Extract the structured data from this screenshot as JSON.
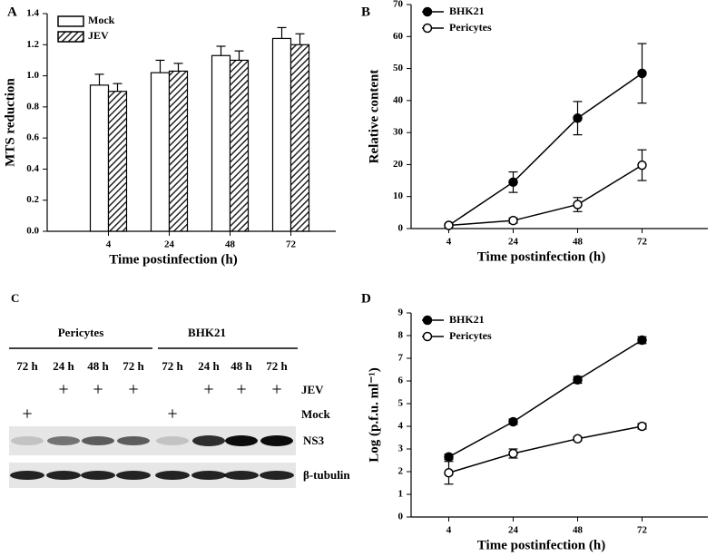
{
  "chart_data": [
    {
      "type": "bar",
      "panel": "A",
      "ylabel": "MTS reduction",
      "xlabel": "Time postinfection (h)",
      "categories": [
        "4",
        "24",
        "48",
        "72"
      ],
      "ylim": [
        0,
        1.4
      ],
      "yticks": [
        {
          "value": 0,
          "label": "0.0"
        },
        0.2,
        0.4,
        0.6,
        0.8,
        {
          "value": 1,
          "label": "1.0"
        },
        1.2,
        1.4
      ],
      "legend": "upper left",
      "series": [
        {
          "name": "Mock",
          "color": "#ffffff",
          "values": [
            0.94,
            1.02,
            1.13,
            1.24
          ],
          "errors": [
            0.07,
            0.08,
            0.06,
            0.07
          ]
        },
        {
          "name": "JEV",
          "color": "#222222",
          "pattern": "hatch",
          "values": [
            0.9,
            1.03,
            1.1,
            1.2
          ],
          "errors": [
            0.05,
            0.05,
            0.06,
            0.07
          ]
        }
      ]
    },
    {
      "type": "line",
      "panel": "B",
      "ylabel": "Relative content",
      "xlabel": "Time postinfection (h)",
      "categories": [
        "4",
        "24",
        "48",
        "72"
      ],
      "ylim": [
        0,
        70
      ],
      "yticks": [
        0,
        10,
        20,
        30,
        40,
        50,
        60,
        70
      ],
      "legend": "upper left",
      "series": [
        {
          "name": "BHK21",
          "color": "#000000",
          "marker_fill": "#000000",
          "values": [
            1,
            14.5,
            34.5,
            48.5
          ],
          "errors": [
            0.5,
            3.2,
            5.2,
            9.3
          ]
        },
        {
          "name": "Pericytes",
          "color": "#000000",
          "marker_fill": "#ffffff",
          "values": [
            1,
            2.5,
            7.5,
            19.8
          ],
          "errors": [
            0.3,
            0.8,
            2.2,
            4.8
          ]
        }
      ]
    },
    {
      "type": "line",
      "panel": "D",
      "ylabel": "Log (p.f.u. ml⁻¹)",
      "xlabel": "Time postinfection (h)",
      "categories": [
        "4",
        "24",
        "48",
        "72"
      ],
      "ylim": [
        0,
        9
      ],
      "yticks": [
        0,
        1,
        2,
        3,
        4,
        5,
        6,
        7,
        8,
        9
      ],
      "legend": "upper left",
      "series": [
        {
          "name": "BHK21",
          "color": "#000000",
          "marker_fill": "#000000",
          "values": [
            2.65,
            4.2,
            6.05,
            7.8
          ],
          "errors": [
            0.12,
            0.12,
            0.15,
            0.15
          ]
        },
        {
          "name": "Pericytes",
          "color": "#000000",
          "marker_fill": "#ffffff",
          "values": [
            1.95,
            2.8,
            3.45,
            4.0
          ],
          "errors": [
            0.5,
            0.2,
            0.08,
            0.12
          ]
        }
      ]
    }
  ],
  "blot": {
    "panel": "C",
    "groups": [
      "Pericytes",
      "BHK21"
    ],
    "lanes": [
      "72 h",
      "24 h",
      "48 h",
      "72 h",
      "72 h",
      "24 h",
      "48 h",
      "72 h"
    ],
    "jev_row": {
      "label": "JEV",
      "marks": [
        null,
        "+",
        "+",
        "+",
        null,
        "+",
        "+",
        "+"
      ]
    },
    "mock_row": {
      "label": "Mock",
      "marks": [
        "+",
        null,
        null,
        null,
        "+",
        null,
        null,
        null
      ]
    },
    "bands": [
      "NS3",
      "β-tubulin"
    ]
  }
}
